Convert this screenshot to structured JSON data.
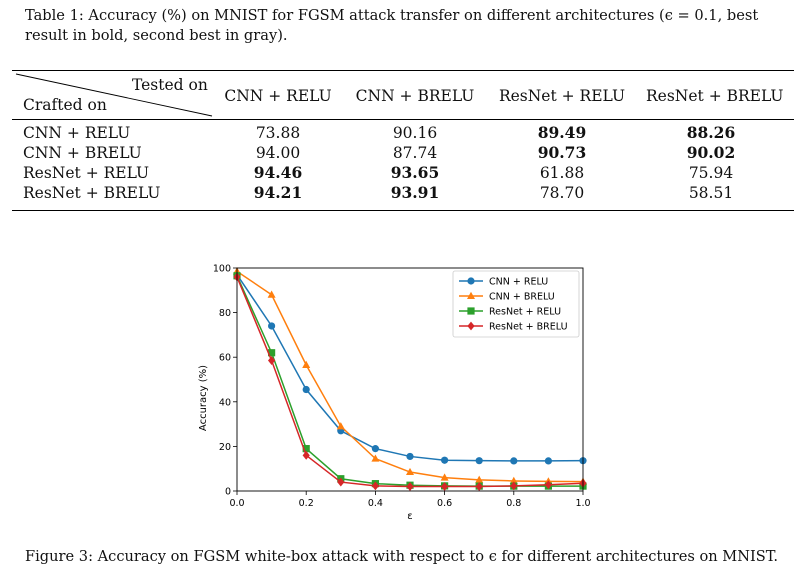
{
  "table": {
    "caption": "Table 1: Accuracy (%) on MNIST for FGSM attack transfer on different architectures (ϵ = 0.1, best result in bold, second best in gray).",
    "corner_top": "Tested on",
    "corner_bottom": "Crafted on",
    "columns": [
      "CNN + RELU",
      "CNN + BRELU",
      "ResNet + RELU",
      "ResNet + BRELU"
    ],
    "rows": [
      {
        "label": "CNN + RELU",
        "values": [
          "73.88",
          "90.16",
          "89.49",
          "88.26"
        ],
        "bold": [
          false,
          false,
          true,
          true
        ]
      },
      {
        "label": "CNN + BRELU",
        "values": [
          "94.00",
          "87.74",
          "90.73",
          "90.02"
        ],
        "bold": [
          false,
          false,
          true,
          true
        ]
      },
      {
        "label": "ResNet + RELU",
        "values": [
          "94.46",
          "93.65",
          "61.88",
          "75.94"
        ],
        "bold": [
          true,
          true,
          false,
          false
        ]
      },
      {
        "label": "ResNet + BRELU",
        "values": [
          "94.21",
          "93.91",
          "78.70",
          "58.51"
        ],
        "bold": [
          true,
          true,
          false,
          false
        ]
      }
    ]
  },
  "figure_caption": "Figure 3: Accuracy on FGSM white-box attack with respect to ϵ for different architectures on MNIST.",
  "chart_data": {
    "type": "line",
    "title": "",
    "xlabel": "ε",
    "ylabel": "Accuracy (%)",
    "xlim": [
      0.0,
      1.0
    ],
    "ylim": [
      0,
      100
    ],
    "xticks": [
      "0.0",
      "0.2",
      "0.4",
      "0.6",
      "0.8",
      "1.0"
    ],
    "yticks": [
      "0",
      "20",
      "40",
      "60",
      "80",
      "100"
    ],
    "x": [
      0.0,
      0.1,
      0.2,
      0.3,
      0.4,
      0.5,
      0.6,
      0.7,
      0.8,
      0.9,
      1.0
    ],
    "legend_position": "top-right",
    "series": [
      {
        "name": "CNN + RELU",
        "color": "#1f77b4",
        "marker": "circle",
        "values": [
          97,
          74,
          45.5,
          27,
          19,
          15.5,
          13.8,
          13.6,
          13.5,
          13.5,
          13.6
        ]
      },
      {
        "name": "CNN + BRELU",
        "color": "#ff7f0e",
        "marker": "triangle",
        "values": [
          98.5,
          88,
          56.5,
          29,
          14.5,
          8.5,
          6,
          5,
          4.5,
          4.3,
          4.2
        ]
      },
      {
        "name": "ResNet + RELU",
        "color": "#2ca02c",
        "marker": "square",
        "values": [
          96.5,
          62,
          19,
          5.5,
          3.3,
          2.6,
          2.3,
          2.2,
          2.2,
          2.2,
          2.2
        ]
      },
      {
        "name": "ResNet + BRELU",
        "color": "#d62728",
        "marker": "diamond",
        "values": [
          96,
          58.5,
          16,
          4,
          2.3,
          2,
          2,
          2,
          2.3,
          2.8,
          3.5
        ]
      }
    ]
  }
}
